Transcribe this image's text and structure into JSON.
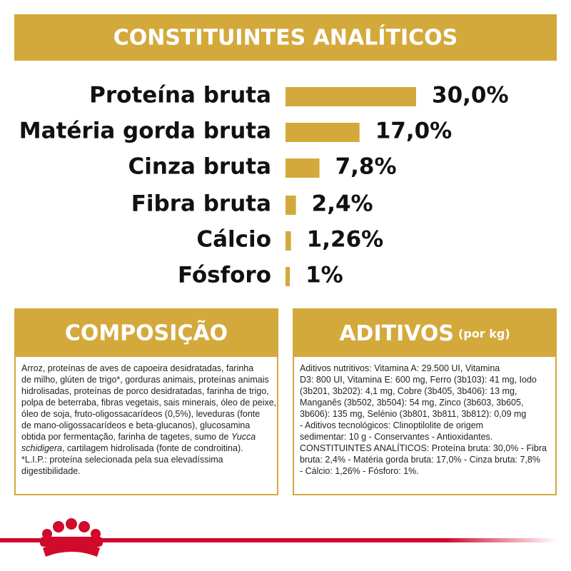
{
  "chart_data": {
    "type": "bar",
    "orientation": "horizontal",
    "title": "CONSTITUINTES ANALÍTICOS",
    "categories": [
      "Proteína bruta",
      "Matéria gorda bruta",
      "Cinza bruta",
      "Fibra bruta",
      "Cálcio",
      "Fósforo"
    ],
    "values": [
      30,
      17,
      7.8,
      2.4,
      1.26,
      1
    ],
    "value_labels": [
      "30,0%",
      "17,0%",
      "7,8%",
      "2,4%",
      "1,26%",
      "1%"
    ],
    "color": "#d4a93c"
  },
  "composition": {
    "title": "COMPOSIÇÃO",
    "lines": [
      "Arroz, proteínas de aves de capoeira desidratadas, farinha",
      "de milho, glúten de trigo*, gorduras animais, proteínas animais",
      "hidrolisadas, proteínas de porco desidratadas, farinha de trigo,",
      "polpa de beterraba, fibras vegetais, sais minerais, óleo de peixe,",
      "óleo de soja, fruto-oligossacarídeos (0,5%), leveduras (fonte",
      "de mano-oligossacarídeos e beta-glucanos), glucosamina",
      [
        "obtida por fermentação, farinha de tagetes, sumo de ",
        {
          "text": "Yucca",
          "style": "italic"
        }
      ],
      [
        {
          "text": "schidigera",
          "style": "italic"
        },
        ", cartilagem hidrolisada (fonte de condroitina)."
      ],
      "*L.I.P.: proteína selecionada pela sua elevadíssima",
      "digestibilidade."
    ]
  },
  "additives": {
    "title": "ADITIVOS",
    "subtitle": "(por kg)",
    "lines": [
      "Aditivos nutritivos: Vitamina A: 29.500 UI, Vitamina",
      "D3: 800 UI, Vitamina E: 600 mg, Ferro (3b103): 41 mg, Iodo",
      "(3b201, 3b202): 4,1 mg, Cobre (3b405, 3b406): 13 mg,",
      "Manganês (3b502, 3b504): 54 mg, Zinco (3b603, 3b605,",
      "3b606): 135 mg, Selénio (3b801, 3b811, 3b812): 0,09 mg",
      "- Aditivos tecnológicos: Clinoptilolite de origem",
      "sedimentar: 10 g - Conservantes - Antioxidantes.",
      "CONSTITUINTES ANALÍTICOS: Proteína bruta: 30,0% - Fibra",
      "bruta: 2,4% - Matéria gorda bruta: 17,0% - Cinza bruta: 7,8%",
      "- Cálcio: 1,26% - Fósforo: 1%."
    ]
  }
}
